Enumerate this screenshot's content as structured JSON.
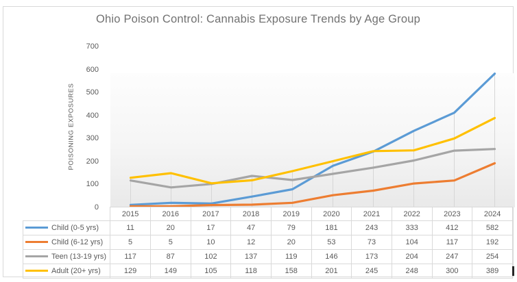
{
  "title": "Ohio Poison Control: Cannabis Exposure Trends by Age Group",
  "colors": {
    "series_blue": "#5B9BD5",
    "series_orange": "#ED7D31",
    "series_gray": "#A5A5A5",
    "series_yellow": "#FFC000",
    "text_gray": "#595959",
    "grid_border": "#D9D9D9"
  },
  "chart_data": {
    "type": "line",
    "title": "Ohio Poison Control: Cannabis Exposure Trends by Age Group",
    "xlabel": "",
    "ylabel": "POISONING EXPOSURES",
    "ylim": [
      0,
      700
    ],
    "ytick_step": 100,
    "grid": "drop-lines-only",
    "legend_position": "data-table-left",
    "has_data_table": true,
    "categories": [
      "2015",
      "2016",
      "2017",
      "2018",
      "2019",
      "2020",
      "2021",
      "2022",
      "2023",
      "2024"
    ],
    "series": [
      {
        "name": "Child (0-5 yrs)",
        "color": "#5B9BD5",
        "values": [
          11,
          20,
          17,
          47,
          79,
          181,
          243,
          333,
          412,
          582
        ]
      },
      {
        "name": "Child (6-12 yrs)",
        "color": "#ED7D31",
        "values": [
          5,
          5,
          10,
          12,
          20,
          53,
          73,
          104,
          117,
          192
        ]
      },
      {
        "name": "Teen (13-19 yrs)",
        "color": "#A5A5A5",
        "values": [
          117,
          87,
          102,
          137,
          119,
          146,
          173,
          204,
          247,
          254
        ]
      },
      {
        "name": "Adult (20+ yrs)",
        "color": "#FFC000",
        "values": [
          129,
          149,
          105,
          118,
          158,
          201,
          245,
          248,
          300,
          389
        ]
      }
    ]
  }
}
